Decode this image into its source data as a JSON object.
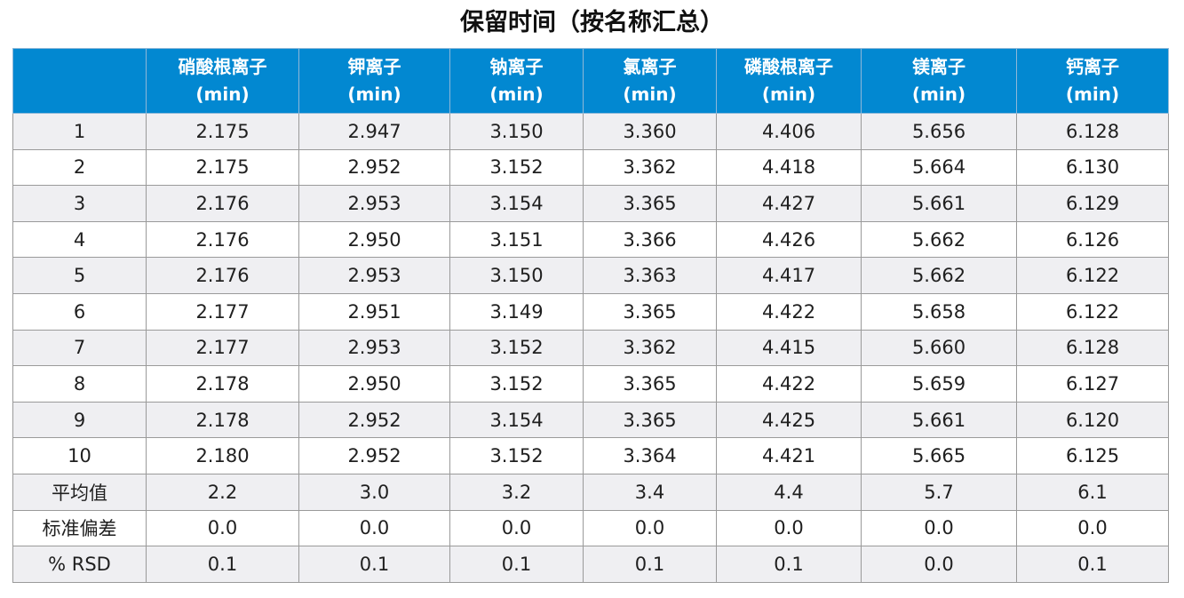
{
  "title": "保留时间（按名称汇总）",
  "colors": {
    "header_background": "#0288d1",
    "header_text": "#ffffff",
    "row_alt_background": "#efeff2",
    "grid_line": "#9a9a9a"
  },
  "table": {
    "corner_label": "",
    "columns": [
      {
        "name": "硝酸根离子",
        "unit": "(min)"
      },
      {
        "name": "钾离子",
        "unit": "(min)"
      },
      {
        "name": "钠离子",
        "unit": "(min)"
      },
      {
        "name": "氯离子",
        "unit": "(min)"
      },
      {
        "name": "磷酸根离子",
        "unit": "(min)"
      },
      {
        "name": "镁离子",
        "unit": "(min)"
      },
      {
        "name": "钙离子",
        "unit": "(min)"
      }
    ],
    "rows": [
      {
        "label": "1",
        "values": [
          "2.175",
          "2.947",
          "3.150",
          "3.360",
          "4.406",
          "5.656",
          "6.128"
        ]
      },
      {
        "label": "2",
        "values": [
          "2.175",
          "2.952",
          "3.152",
          "3.362",
          "4.418",
          "5.664",
          "6.130"
        ]
      },
      {
        "label": "3",
        "values": [
          "2.176",
          "2.953",
          "3.154",
          "3.365",
          "4.427",
          "5.661",
          "6.129"
        ]
      },
      {
        "label": "4",
        "values": [
          "2.176",
          "2.950",
          "3.151",
          "3.366",
          "4.426",
          "5.662",
          "6.126"
        ]
      },
      {
        "label": "5",
        "values": [
          "2.176",
          "2.953",
          "3.150",
          "3.363",
          "4.417",
          "5.662",
          "6.122"
        ]
      },
      {
        "label": "6",
        "values": [
          "2.177",
          "2.951",
          "3.149",
          "3.365",
          "4.422",
          "5.658",
          "6.122"
        ]
      },
      {
        "label": "7",
        "values": [
          "2.177",
          "2.953",
          "3.152",
          "3.362",
          "4.415",
          "5.660",
          "6.128"
        ]
      },
      {
        "label": "8",
        "values": [
          "2.178",
          "2.950",
          "3.152",
          "3.365",
          "4.422",
          "5.659",
          "6.127"
        ]
      },
      {
        "label": "9",
        "values": [
          "2.178",
          "2.952",
          "3.154",
          "3.365",
          "4.425",
          "5.661",
          "6.120"
        ]
      },
      {
        "label": "10",
        "values": [
          "2.180",
          "2.952",
          "3.152",
          "3.364",
          "4.421",
          "5.665",
          "6.125"
        ]
      },
      {
        "label": "平均值",
        "values": [
          "2.2",
          "3.0",
          "3.2",
          "3.4",
          "4.4",
          "5.7",
          "6.1"
        ]
      },
      {
        "label": "标准偏差",
        "values": [
          "0.0",
          "0.0",
          "0.0",
          "0.0",
          "0.0",
          "0.0",
          "0.0"
        ]
      },
      {
        "label": "% RSD",
        "values": [
          "0.1",
          "0.1",
          "0.1",
          "0.1",
          "0.1",
          "0.0",
          "0.1"
        ]
      }
    ]
  }
}
